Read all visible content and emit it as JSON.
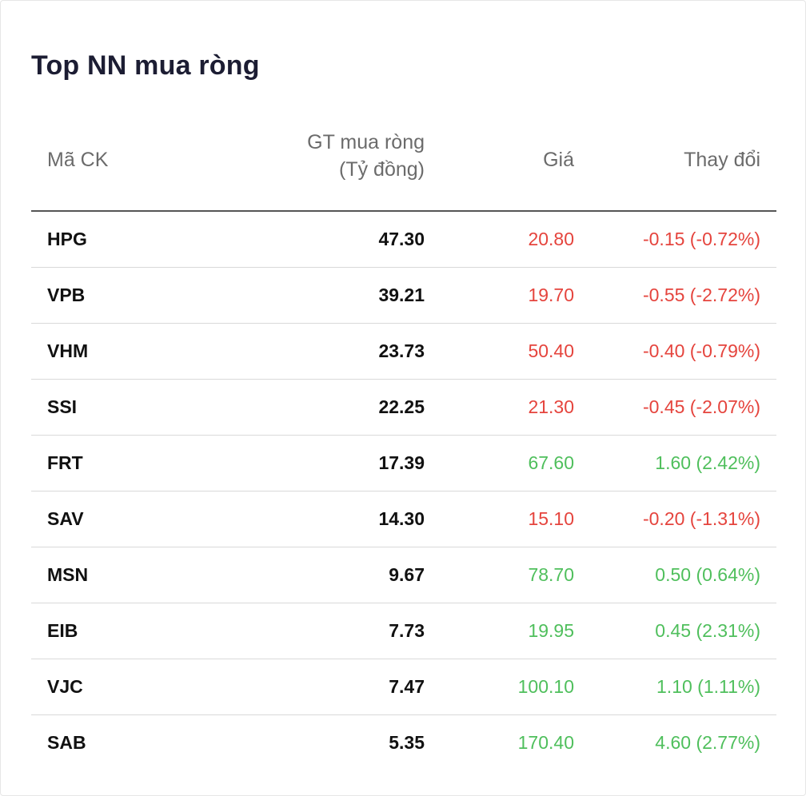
{
  "widget": {
    "title": "Top NN mua ròng",
    "colors": {
      "up": "#4fbf5c",
      "down": "#e5443d",
      "title": "#1c1d33",
      "header_text": "#6b6b6b"
    }
  },
  "table": {
    "headers": {
      "code": "Mã CK",
      "value_line1": "GT mua ròng",
      "value_line2": "(Tỷ đồng)",
      "price": "Giá",
      "change": "Thay đổi"
    },
    "rows": [
      {
        "code": "HPG",
        "value": "47.30",
        "price": "20.80",
        "change": "-0.15 (-0.72%)",
        "direction": "down"
      },
      {
        "code": "VPB",
        "value": "39.21",
        "price": "19.70",
        "change": "-0.55 (-2.72%)",
        "direction": "down"
      },
      {
        "code": "VHM",
        "value": "23.73",
        "price": "50.40",
        "change": "-0.40 (-0.79%)",
        "direction": "down"
      },
      {
        "code": "SSI",
        "value": "22.25",
        "price": "21.30",
        "change": "-0.45 (-2.07%)",
        "direction": "down"
      },
      {
        "code": "FRT",
        "value": "17.39",
        "price": "67.60",
        "change": "1.60 (2.42%)",
        "direction": "up"
      },
      {
        "code": "SAV",
        "value": "14.30",
        "price": "15.10",
        "change": "-0.20 (-1.31%)",
        "direction": "down"
      },
      {
        "code": "MSN",
        "value": "9.67",
        "price": "78.70",
        "change": "0.50 (0.64%)",
        "direction": "up"
      },
      {
        "code": "EIB",
        "value": "7.73",
        "price": "19.95",
        "change": "0.45 (2.31%)",
        "direction": "up"
      },
      {
        "code": "VJC",
        "value": "7.47",
        "price": "100.10",
        "change": "1.10 (1.11%)",
        "direction": "up"
      },
      {
        "code": "SAB",
        "value": "5.35",
        "price": "170.40",
        "change": "4.60 (2.77%)",
        "direction": "up"
      }
    ]
  }
}
